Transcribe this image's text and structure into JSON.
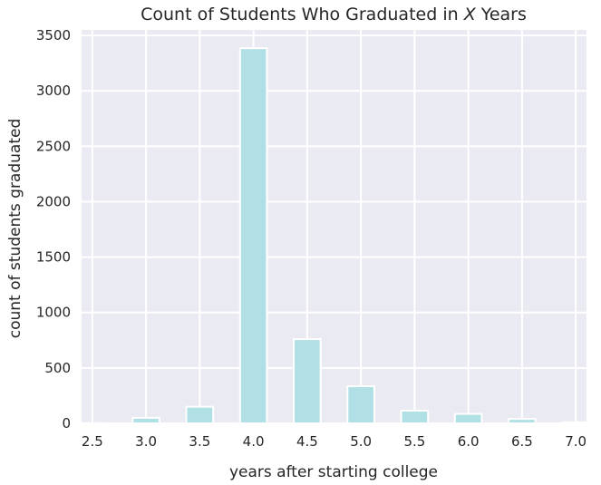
{
  "chart_data": {
    "type": "bar",
    "title_prefix": "Count of Students Who Graduated in ",
    "title_var": "X",
    "title_suffix": " Years",
    "xlabel": "years after starting college",
    "ylabel": "count of students graduated",
    "x_ticks": [
      "2.5",
      "3.0",
      "3.5",
      "4.0",
      "4.5",
      "5.0",
      "5.5",
      "6.0",
      "6.5",
      "7.0"
    ],
    "y_ticks": [
      "0",
      "500",
      "1000",
      "1500",
      "2000",
      "2500",
      "3000",
      "3500"
    ],
    "xlim": [
      2.4,
      7.1
    ],
    "ylim": [
      0,
      3550
    ],
    "bar_width": 0.25,
    "bars": [
      {
        "x": 2.5,
        "value": 2
      },
      {
        "x": 3.0,
        "value": 50
      },
      {
        "x": 3.5,
        "value": 150
      },
      {
        "x": 4.0,
        "value": 3385
      },
      {
        "x": 4.5,
        "value": 760
      },
      {
        "x": 5.0,
        "value": 335
      },
      {
        "x": 5.5,
        "value": 115
      },
      {
        "x": 6.0,
        "value": 85
      },
      {
        "x": 6.5,
        "value": 40
      },
      {
        "x": 7.0,
        "value": 10
      }
    ],
    "background": "#eaeaf2",
    "bar_color": "#b0dfe5",
    "grid": true
  }
}
